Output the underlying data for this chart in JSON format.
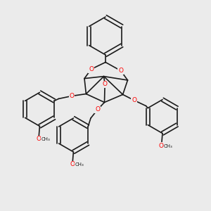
{
  "background_color": "#ebebeb",
  "bond_color": "#1a1a1a",
  "oxygen_color": "#ff0000",
  "line_width": 1.2,
  "figsize": [
    3.0,
    3.0
  ],
  "dpi": 100,
  "methoxy_label": "O",
  "ch3_label": "CH₃"
}
